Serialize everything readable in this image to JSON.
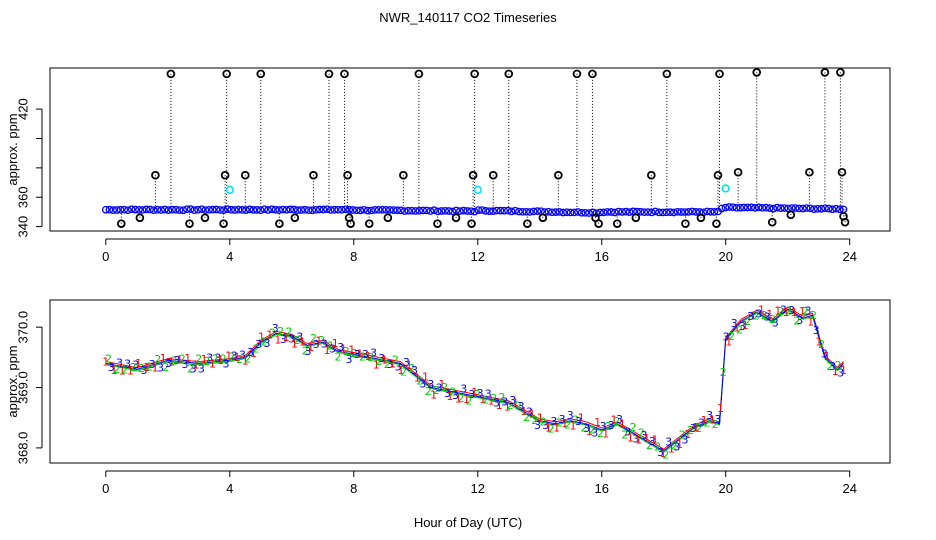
{
  "figure_title": "NWR_140117  CO2 Timeseries",
  "chart_data": [
    {
      "type": "scatter",
      "name": "top-panel",
      "title": "NWR_140117  CO2 Timeseries",
      "ylabel": "approx. ppm",
      "xlim": [
        -1.8,
        25.3
      ],
      "ylim": [
        337,
        448
      ],
      "xticks": [
        0,
        4,
        8,
        12,
        16,
        20,
        24
      ],
      "yticks": [
        340,
        360,
        380,
        400,
        420
      ],
      "ytick_labels": [
        "340",
        "360",
        "",
        "",
        "420"
      ],
      "colors": {
        "main": "#0000ff",
        "flagged": "#000000",
        "highlight": "#00e5ee"
      },
      "baseline": [
        [
          0.0,
          351.5
        ],
        [
          7.9,
          351.5
        ],
        [
          8.0,
          351.3
        ],
        [
          11.9,
          350.5
        ],
        [
          12.0,
          351.0
        ],
        [
          15.9,
          349.5
        ],
        [
          16.0,
          350.0
        ],
        [
          19.8,
          350.0
        ],
        [
          19.9,
          353.0
        ],
        [
          23.8,
          352.0
        ]
      ],
      "outliers": [
        [
          0.5,
          342
        ],
        [
          1.1,
          346
        ],
        [
          1.6,
          375
        ],
        [
          2.1,
          444
        ],
        [
          2.7,
          342
        ],
        [
          3.2,
          346
        ],
        [
          3.8,
          342
        ],
        [
          3.85,
          375
        ],
        [
          3.9,
          444
        ],
        [
          4.5,
          375
        ],
        [
          5.0,
          444
        ],
        [
          5.6,
          342
        ],
        [
          6.1,
          346
        ],
        [
          6.7,
          375
        ],
        [
          7.2,
          444
        ],
        [
          7.7,
          444
        ],
        [
          7.8,
          375
        ],
        [
          7.85,
          346
        ],
        [
          7.9,
          342
        ],
        [
          8.5,
          342
        ],
        [
          9.1,
          346
        ],
        [
          9.6,
          375
        ],
        [
          10.1,
          444
        ],
        [
          10.7,
          342
        ],
        [
          11.3,
          346
        ],
        [
          11.8,
          342
        ],
        [
          11.85,
          375
        ],
        [
          11.9,
          444
        ],
        [
          12.5,
          375
        ],
        [
          13.0,
          444
        ],
        [
          13.6,
          342
        ],
        [
          14.1,
          346
        ],
        [
          14.6,
          375
        ],
        [
          15.2,
          444
        ],
        [
          15.7,
          444
        ],
        [
          15.8,
          346
        ],
        [
          15.9,
          342
        ],
        [
          16.5,
          342
        ],
        [
          17.1,
          346
        ],
        [
          17.6,
          375
        ],
        [
          18.1,
          444
        ],
        [
          18.7,
          342
        ],
        [
          19.2,
          346
        ],
        [
          19.7,
          342
        ],
        [
          19.75,
          375
        ],
        [
          19.8,
          444
        ],
        [
          20.4,
          377
        ],
        [
          21.0,
          445
        ],
        [
          21.5,
          343
        ],
        [
          22.1,
          348
        ],
        [
          22.7,
          377
        ],
        [
          23.2,
          445
        ],
        [
          23.7,
          445
        ],
        [
          23.75,
          377
        ],
        [
          23.8,
          347
        ],
        [
          23.85,
          343
        ]
      ],
      "highlights": [
        [
          4.0,
          365
        ],
        [
          12.0,
          365
        ],
        [
          20.0,
          366
        ]
      ]
    },
    {
      "type": "scatter",
      "name": "bottom-panel",
      "ylabel": "approx. ppm",
      "xlabel": "Hour of Day (UTC)",
      "xlim": [
        -1.8,
        25.3
      ],
      "ylim": [
        367.75,
        370.45
      ],
      "xticks": [
        0,
        4,
        8,
        12,
        16,
        20,
        24
      ],
      "yticks": [
        368.0,
        369.0,
        370.0
      ],
      "series": [
        {
          "name": "1",
          "color": "#ff0000"
        },
        {
          "name": "2",
          "color": "#00cd00"
        },
        {
          "name": "3",
          "color": "#0000ff"
        }
      ],
      "trend": [
        [
          0.0,
          369.4
        ],
        [
          1.0,
          369.3
        ],
        [
          2.0,
          369.45
        ],
        [
          3.0,
          369.4
        ],
        [
          4.0,
          369.45
        ],
        [
          4.5,
          369.5
        ],
        [
          5.0,
          369.75
        ],
        [
          5.5,
          369.9
        ],
        [
          6.0,
          369.85
        ],
        [
          6.5,
          369.7
        ],
        [
          7.0,
          369.75
        ],
        [
          7.5,
          369.6
        ],
        [
          8.0,
          369.55
        ],
        [
          8.5,
          369.5
        ],
        [
          9.0,
          369.45
        ],
        [
          9.5,
          369.4
        ],
        [
          10.0,
          369.2
        ],
        [
          10.5,
          369.0
        ],
        [
          11.0,
          368.95
        ],
        [
          11.5,
          368.9
        ],
        [
          12.0,
          368.85
        ],
        [
          12.5,
          368.8
        ],
        [
          13.0,
          368.75
        ],
        [
          13.5,
          368.6
        ],
        [
          14.0,
          368.45
        ],
        [
          14.5,
          368.4
        ],
        [
          15.0,
          368.45
        ],
        [
          15.5,
          368.4
        ],
        [
          16.0,
          368.3
        ],
        [
          16.5,
          368.4
        ],
        [
          17.0,
          368.25
        ],
        [
          17.5,
          368.1
        ],
        [
          18.0,
          367.95
        ],
        [
          18.5,
          368.15
        ],
        [
          19.0,
          368.35
        ],
        [
          19.5,
          368.45
        ],
        [
          19.8,
          368.4
        ],
        [
          20.0,
          369.8
        ],
        [
          20.5,
          370.1
        ],
        [
          21.0,
          370.25
        ],
        [
          21.5,
          370.1
        ],
        [
          22.0,
          370.3
        ],
        [
          22.5,
          370.15
        ],
        [
          22.8,
          370.2
        ],
        [
          23.2,
          369.5
        ],
        [
          23.6,
          369.3
        ],
        [
          23.8,
          369.4
        ]
      ]
    }
  ]
}
